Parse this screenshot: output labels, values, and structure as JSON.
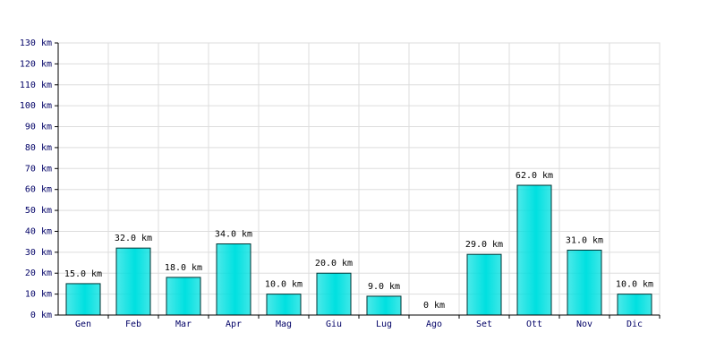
{
  "chart_data": {
    "type": "bar",
    "categories": [
      "Gen",
      "Feb",
      "Mar",
      "Apr",
      "Mag",
      "Giu",
      "Lug",
      "Ago",
      "Set",
      "Ott",
      "Nov",
      "Dic"
    ],
    "values": [
      15,
      32,
      18,
      34,
      10,
      20,
      9,
      0,
      29,
      62,
      31,
      10
    ],
    "value_labels": [
      "15.0 km",
      "32.0 km",
      "18.0 km",
      "34.0 km",
      "10.0 km",
      "20.0 km",
      "9.0 km",
      "0 km",
      "29.0 km",
      "62.0 km",
      "31.0 km",
      "10.0 km"
    ],
    "color": "#00e0e0",
    "ylim": [
      0,
      130
    ],
    "yticks": [
      {
        "value": 0,
        "label": "0 km"
      },
      {
        "value": 10,
        "label": "10 km"
      },
      {
        "value": 20,
        "label": "20 km"
      },
      {
        "value": 30,
        "label": "30 km"
      },
      {
        "value": 40,
        "label": "40 km"
      },
      {
        "value": 50,
        "label": "50 km"
      },
      {
        "value": 60,
        "label": "60 km"
      },
      {
        "value": 70,
        "label": "70 km"
      },
      {
        "value": 80,
        "label": "80 km"
      },
      {
        "value": 90,
        "label": "90 km"
      },
      {
        "value": 100,
        "label": "100 km"
      },
      {
        "value": 110,
        "label": "110 km"
      },
      {
        "value": 120,
        "label": "120 km"
      },
      {
        "value": 130,
        "label": "130 km"
      }
    ],
    "grid": true
  }
}
